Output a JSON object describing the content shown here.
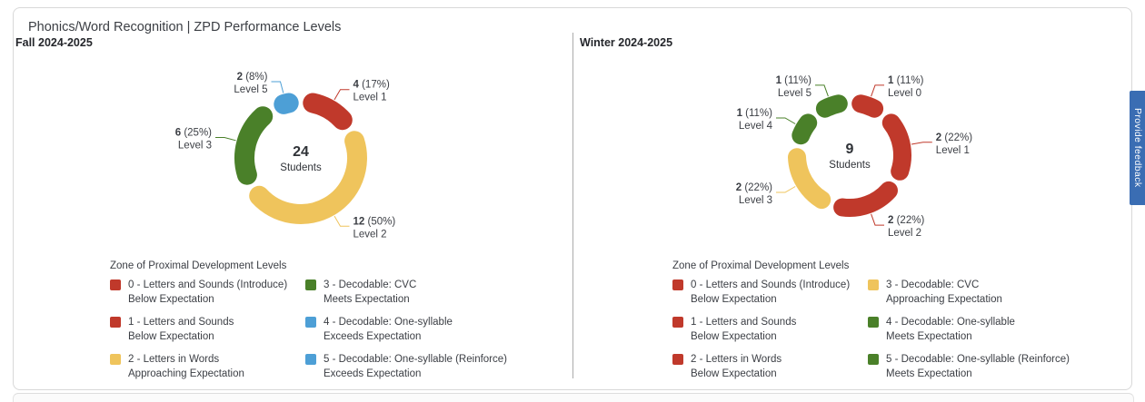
{
  "page": {
    "title": "Phonics/Word Recognition | ZPD Performance Levels",
    "feedback_button": "Provide feedback"
  },
  "colors": {
    "red": "#c0392b",
    "yellow": "#efc45c",
    "green": "#4a8029",
    "blue": "#4d9fd6",
    "feedback_blue": "#3a6db3"
  },
  "chart_data": [
    {
      "type": "donut",
      "title": "Fall 2024-2025",
      "center_value": "24",
      "center_label": "Students",
      "total_students": 24,
      "slices": [
        {
          "label": "Level 1",
          "value": 4,
          "pct": "17%",
          "color": "#c0392b"
        },
        {
          "label": "Level 2",
          "value": 12,
          "pct": "50%",
          "color": "#efc45c"
        },
        {
          "label": "Level 3",
          "value": 6,
          "pct": "25%",
          "color": "#4a8029"
        },
        {
          "label": "Level 5",
          "value": 2,
          "pct": "8%",
          "color": "#4d9fd6"
        }
      ],
      "legend": {
        "title": "Zone of Proximal Development Levels",
        "items": [
          {
            "color": "#c0392b",
            "line1": "0 - Letters and Sounds (Introduce)",
            "line2": "Below Expectation"
          },
          {
            "color": "#c0392b",
            "line1": "1 - Letters and Sounds",
            "line2": "Below Expectation"
          },
          {
            "color": "#efc45c",
            "line1": "2 - Letters in Words",
            "line2": "Approaching Expectation"
          },
          {
            "color": "#4a8029",
            "line1": "3 - Decodable: CVC",
            "line2": "Meets Expectation"
          },
          {
            "color": "#4d9fd6",
            "line1": "4 - Decodable: One-syllable",
            "line2": "Exceeds Expectation"
          },
          {
            "color": "#4d9fd6",
            "line1": "5 - Decodable: One-syllable (Reinforce)",
            "line2": "Exceeds Expectation"
          }
        ]
      }
    },
    {
      "type": "donut",
      "title": "Winter 2024-2025",
      "center_value": "9",
      "center_label": "Students",
      "total_students": 9,
      "slices": [
        {
          "label": "Level 0",
          "value": 1,
          "pct": "11%",
          "color": "#c0392b"
        },
        {
          "label": "Level 1",
          "value": 2,
          "pct": "22%",
          "color": "#c0392b"
        },
        {
          "label": "Level 2",
          "value": 2,
          "pct": "22%",
          "color": "#c0392b"
        },
        {
          "label": "Level 3",
          "value": 2,
          "pct": "22%",
          "color": "#efc45c"
        },
        {
          "label": "Level 4",
          "value": 1,
          "pct": "11%",
          "color": "#4a8029"
        },
        {
          "label": "Level 5",
          "value": 1,
          "pct": "11%",
          "color": "#4a8029"
        }
      ],
      "legend": {
        "title": "Zone of Proximal Development Levels",
        "items": [
          {
            "color": "#c0392b",
            "line1": "0 - Letters and Sounds (Introduce)",
            "line2": "Below Expectation"
          },
          {
            "color": "#c0392b",
            "line1": "1 - Letters and Sounds",
            "line2": "Below Expectation"
          },
          {
            "color": "#c0392b",
            "line1": "2 - Letters in Words",
            "line2": "Below Expectation"
          },
          {
            "color": "#efc45c",
            "line1": "3 - Decodable: CVC",
            "line2": "Approaching Expectation"
          },
          {
            "color": "#4a8029",
            "line1": "4 - Decodable: One-syllable",
            "line2": "Meets Expectation"
          },
          {
            "color": "#4a8029",
            "line1": "5 - Decodable: One-syllable (Reinforce)",
            "line2": "Meets Expectation"
          }
        ]
      }
    }
  ]
}
